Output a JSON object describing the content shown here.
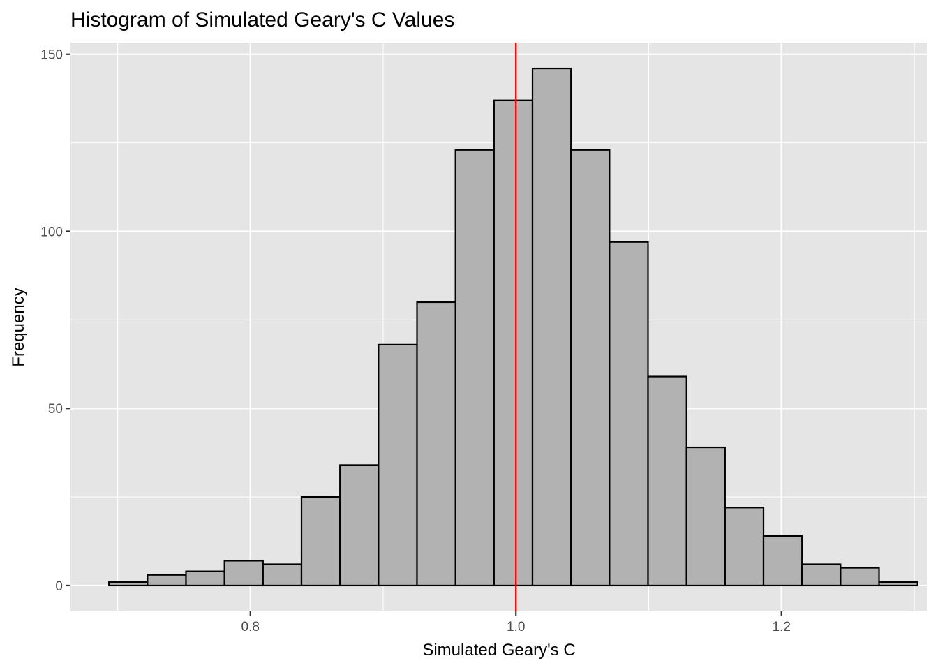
{
  "chart_data": {
    "type": "bar",
    "title": "Histogram of Simulated Geary's C Values",
    "xlabel": "Simulated Geary's C",
    "ylabel": "Frequency",
    "xlim": [
      0.6645,
      1.3095
    ],
    "ylim": [
      -7.3,
      153.3
    ],
    "x_ticks": [
      0.8,
      1.0,
      1.2
    ],
    "x_tick_labels": [
      "0.8",
      "1.0",
      "1.2"
    ],
    "y_ticks": [
      0,
      50,
      100,
      150
    ],
    "y_tick_labels": [
      "0",
      "50",
      "100",
      "150"
    ],
    "bin_width": 0.029,
    "bins_left": [
      0.6935,
      0.7225,
      0.7515,
      0.7805,
      0.8095,
      0.8385,
      0.8675,
      0.8965,
      0.9255,
      0.9545,
      0.9835,
      1.0125,
      1.0415,
      1.0705,
      1.0995,
      1.1285,
      1.1575,
      1.1865,
      1.2155,
      1.2445,
      1.2735
    ],
    "values": [
      1,
      3,
      4,
      7,
      6,
      25,
      34,
      68,
      80,
      123,
      137,
      146,
      123,
      97,
      59,
      39,
      22,
      14,
      6,
      5,
      1
    ],
    "reference_line": {
      "x": 1.0,
      "color": "#ff0000"
    },
    "grid": true,
    "colors": {
      "panel": "#e5e5e5",
      "grid": "#ffffff",
      "bar_fill": "#b2b2b2",
      "bar_stroke": "#000000"
    }
  }
}
